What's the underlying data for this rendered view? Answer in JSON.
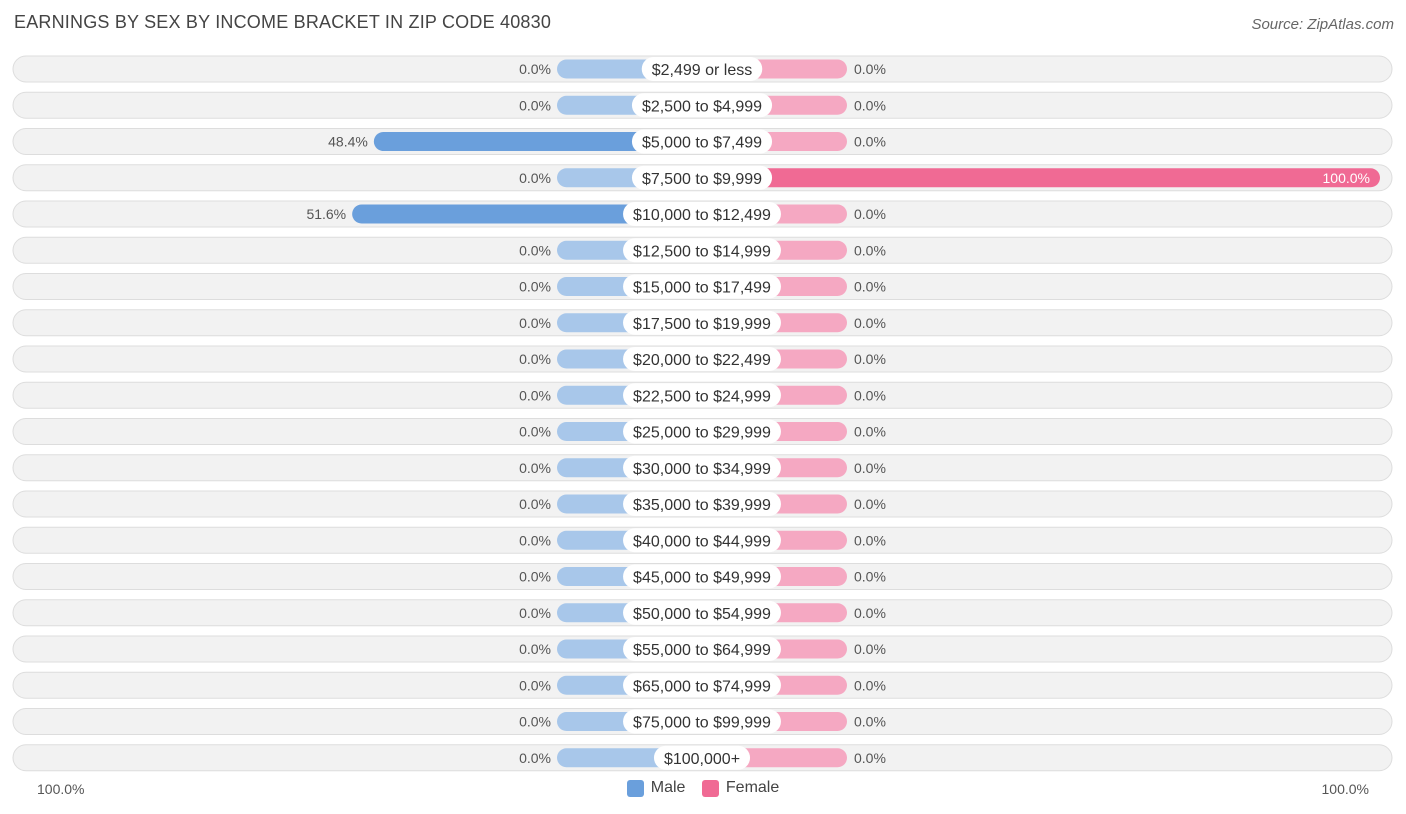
{
  "title": "EARNINGS BY SEX BY INCOME BRACKET IN ZIP CODE 40830",
  "source": "Source: ZipAtlas.com",
  "colors": {
    "male": "#6a9fdc",
    "male_light": "#a8c7ea",
    "female": "#f06a94",
    "female_light": "#f5a8c2",
    "row_bg": "#f2f2f2",
    "row_border": "#dddddd"
  },
  "axis": {
    "left_label": "100.0%",
    "right_label": "100.0%"
  },
  "legend": [
    {
      "name": "Male",
      "color": "#6a9fdc"
    },
    {
      "name": "Female",
      "color": "#f06a94"
    }
  ],
  "chart_data": {
    "type": "bar",
    "orientation": "horizontal-diverging",
    "xlim": [
      -100,
      100
    ],
    "categories": [
      "$2,499 or less",
      "$2,500 to $4,999",
      "$5,000 to $7,499",
      "$7,500 to $9,999",
      "$10,000 to $12,499",
      "$12,500 to $14,999",
      "$15,000 to $17,499",
      "$17,500 to $19,999",
      "$20,000 to $22,499",
      "$22,500 to $24,999",
      "$25,000 to $29,999",
      "$30,000 to $34,999",
      "$35,000 to $39,999",
      "$40,000 to $44,999",
      "$45,000 to $49,999",
      "$50,000 to $54,999",
      "$55,000 to $64,999",
      "$65,000 to $74,999",
      "$75,000 to $99,999",
      "$100,000+"
    ],
    "series": [
      {
        "name": "Male",
        "values": [
          0,
          0,
          48.4,
          0,
          51.6,
          0,
          0,
          0,
          0,
          0,
          0,
          0,
          0,
          0,
          0,
          0,
          0,
          0,
          0,
          0
        ],
        "labels": [
          "0.0%",
          "0.0%",
          "48.4%",
          "0.0%",
          "51.6%",
          "0.0%",
          "0.0%",
          "0.0%",
          "0.0%",
          "0.0%",
          "0.0%",
          "0.0%",
          "0.0%",
          "0.0%",
          "0.0%",
          "0.0%",
          "0.0%",
          "0.0%",
          "0.0%",
          "0.0%"
        ]
      },
      {
        "name": "Female",
        "values": [
          0,
          0,
          0,
          100,
          0,
          0,
          0,
          0,
          0,
          0,
          0,
          0,
          0,
          0,
          0,
          0,
          0,
          0,
          0,
          0
        ],
        "labels": [
          "0.0%",
          "0.0%",
          "0.0%",
          "100.0%",
          "0.0%",
          "0.0%",
          "0.0%",
          "0.0%",
          "0.0%",
          "0.0%",
          "0.0%",
          "0.0%",
          "0.0%",
          "0.0%",
          "0.0%",
          "0.0%",
          "0.0%",
          "0.0%",
          "0.0%",
          "0.0%"
        ]
      }
    ]
  }
}
